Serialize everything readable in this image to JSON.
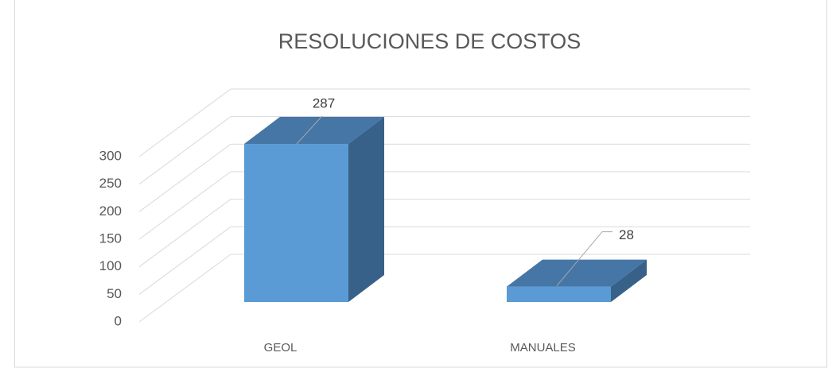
{
  "chart_data": {
    "type": "bar3d",
    "title": "RESOLUCIONES DE COSTOS",
    "categories": [
      "GEOL",
      "MANUALES"
    ],
    "values": [
      287,
      28
    ],
    "colors": {
      "front": "#5b9bd5",
      "top": "#4676a6",
      "side": "#386189"
    },
    "ylim": [
      0,
      300
    ],
    "yticks": [
      0,
      50,
      100,
      150,
      200,
      250,
      300
    ],
    "grid": true
  }
}
